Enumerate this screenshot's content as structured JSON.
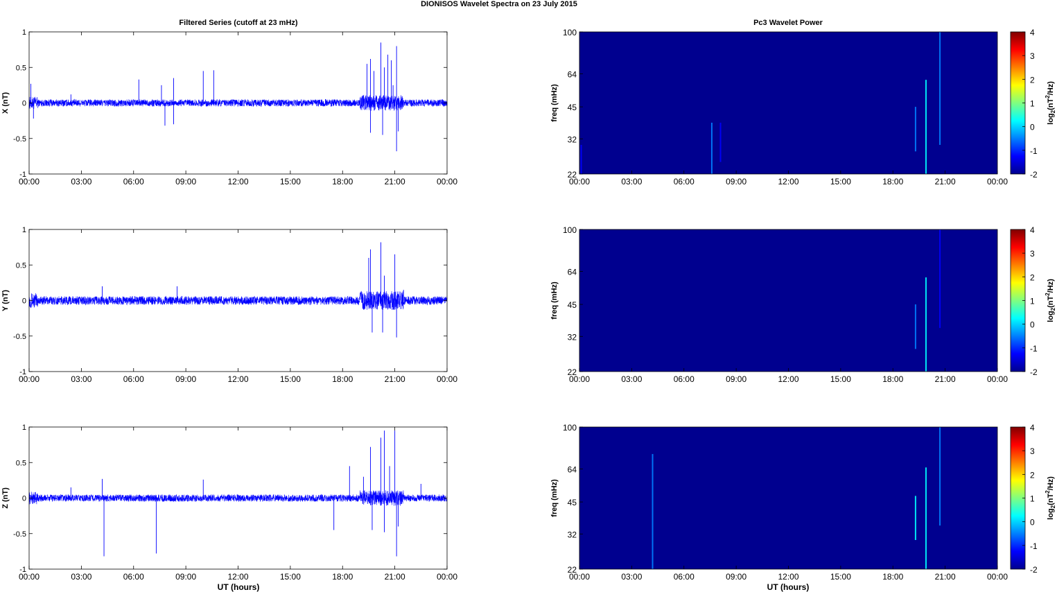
{
  "figure": {
    "suptitle": "DIONISOS Wavelet Spectra on 23 July      2015",
    "left_title": "Filtered Series (cutoff at 23 mHz)",
    "right_title": "Pc3 Wavelet Power",
    "xlabel": "UT (hours)"
  },
  "colors": {
    "series_line": "#0000ff",
    "spectrogram_background": "#00008f",
    "colormap": [
      "#00008f",
      "#0000ff",
      "#0080ff",
      "#00ffff",
      "#80ff80",
      "#ffff00",
      "#ff8000",
      "#ff0000",
      "#800000"
    ]
  },
  "chart_data": [
    {
      "type": "line",
      "panel": "time-series",
      "ylabel": "X (nT)",
      "ylim": [
        -1,
        1
      ],
      "xlim_hours": [
        0,
        24
      ],
      "x_ticks": [
        "00:00",
        "03:00",
        "06:00",
        "09:00",
        "12:00",
        "15:00",
        "18:00",
        "21:00",
        "00:00"
      ],
      "y_ticks": [
        "-1",
        "-0.5",
        "0",
        "0.5",
        "1"
      ],
      "series": [
        {
          "noise_amplitude": 0.05,
          "spikes": [
            [
              0.1,
              0.27
            ],
            [
              0.25,
              -0.22
            ],
            [
              2.4,
              0.12
            ],
            [
              6.3,
              0.33
            ],
            [
              7.6,
              0.25
            ],
            [
              7.8,
              -0.32
            ],
            [
              8.3,
              0.35
            ],
            [
              8.3,
              -0.3
            ],
            [
              10,
              0.45
            ],
            [
              10.6,
              0.46
            ],
            [
              19.4,
              0.55
            ],
            [
              19.6,
              0.62
            ],
            [
              19.6,
              -0.42
            ],
            [
              19.8,
              0.45
            ],
            [
              20.2,
              0.85
            ],
            [
              20.4,
              0.5
            ],
            [
              20.6,
              0.68
            ],
            [
              20.8,
              0.6
            ],
            [
              20.9,
              0.25
            ],
            [
              21.1,
              0.8
            ],
            [
              21.1,
              -0.68
            ],
            [
              20.3,
              -0.45
            ],
            [
              21.2,
              -0.4
            ]
          ]
        }
      ]
    },
    {
      "type": "line",
      "panel": "time-series",
      "ylabel": "Y (nT)",
      "ylim": [
        -1,
        1
      ],
      "xlim_hours": [
        0,
        24
      ],
      "x_ticks": [
        "00:00",
        "03:00",
        "06:00",
        "09:00",
        "12:00",
        "15:00",
        "18:00",
        "21:00",
        "00:00"
      ],
      "y_ticks": [
        "-1",
        "-0.5",
        "0",
        "0.5",
        "1"
      ],
      "series": [
        {
          "noise_amplitude": 0.06,
          "spikes": [
            [
              4.2,
              0.2
            ],
            [
              8.5,
              0.2
            ],
            [
              19.5,
              0.6
            ],
            [
              19.6,
              0.72
            ],
            [
              19.7,
              -0.45
            ],
            [
              20.2,
              0.82
            ],
            [
              20.4,
              0.35
            ],
            [
              20.3,
              -0.45
            ],
            [
              21.0,
              0.65
            ],
            [
              21.1,
              -0.52
            ],
            [
              21.5,
              0.15
            ]
          ]
        }
      ]
    },
    {
      "type": "line",
      "panel": "time-series",
      "ylabel": "Z (nT)",
      "ylim": [
        -1,
        1
      ],
      "xlim_hours": [
        0,
        24
      ],
      "x_ticks": [
        "00:00",
        "03:00",
        "06:00",
        "09:00",
        "12:00",
        "15:00",
        "18:00",
        "21:00",
        "00:00"
      ],
      "y_ticks": [
        "-1",
        "-0.5",
        "0",
        "0.5",
        "1"
      ],
      "series": [
        {
          "noise_amplitude": 0.05,
          "spikes": [
            [
              2.4,
              0.15
            ],
            [
              4.2,
              0.27
            ],
            [
              4.3,
              -0.82
            ],
            [
              7.3,
              -0.78
            ],
            [
              10,
              0.26
            ],
            [
              17.5,
              -0.45
            ],
            [
              18.4,
              0.45
            ],
            [
              19.2,
              0.3
            ],
            [
              19.6,
              0.72
            ],
            [
              19.7,
              -0.45
            ],
            [
              20.2,
              0.85
            ],
            [
              20.4,
              0.95
            ],
            [
              20.4,
              -0.48
            ],
            [
              20.7,
              0.45
            ],
            [
              21.0,
              0.95
            ],
            [
              21.1,
              -0.82
            ],
            [
              21.2,
              -0.4
            ],
            [
              22.5,
              0.2
            ]
          ]
        }
      ]
    },
    {
      "type": "heatmap",
      "panel": "spectrogram",
      "ylabel": "freq (mHz)",
      "y_ticks": [
        "22",
        "32",
        "45",
        "64",
        "100"
      ],
      "y_tick_values": [
        22,
        32,
        45,
        64,
        100
      ],
      "y_scale": "log",
      "xlim_hours": [
        0,
        24
      ],
      "x_ticks": [
        "00:00",
        "03:00",
        "06:00",
        "09:00",
        "12:00",
        "15:00",
        "18:00",
        "21:00",
        "00:00"
      ],
      "colorbar_label_parts": [
        "log",
        "2",
        "(nT",
        "2",
        "/Hz)"
      ],
      "colorbar_ticks": [
        "-2",
        "-1",
        "0",
        "1",
        "2",
        "3",
        "4"
      ],
      "clim": [
        -2,
        4
      ],
      "streaks": [
        [
          0.1,
          22,
          30,
          -1.2
        ],
        [
          7.6,
          22,
          38,
          -0.8
        ],
        [
          8.1,
          25,
          38,
          -1.5
        ],
        [
          19.3,
          28,
          45,
          -0.2
        ],
        [
          19.9,
          22,
          60,
          0.2
        ],
        [
          20.7,
          30,
          100,
          -0.8
        ]
      ]
    },
    {
      "type": "heatmap",
      "panel": "spectrogram",
      "ylabel": "freq (mHz)",
      "y_ticks": [
        "22",
        "32",
        "45",
        "64",
        "100"
      ],
      "y_tick_values": [
        22,
        32,
        45,
        64,
        100
      ],
      "y_scale": "log",
      "xlim_hours": [
        0,
        24
      ],
      "x_ticks": [
        "00:00",
        "03:00",
        "06:00",
        "09:00",
        "12:00",
        "15:00",
        "18:00",
        "21:00",
        "00:00"
      ],
      "colorbar_label_parts": [
        "log",
        "2",
        "(nT",
        "2",
        "/Hz)"
      ],
      "colorbar_ticks": [
        "-2",
        "-1",
        "0",
        "1",
        "2",
        "3",
        "4"
      ],
      "clim": [
        -2,
        4
      ],
      "streaks": [
        [
          19.3,
          28,
          45,
          -0.3
        ],
        [
          19.9,
          22,
          60,
          0.1
        ],
        [
          20.7,
          35,
          100,
          -1.0
        ]
      ]
    },
    {
      "type": "heatmap",
      "panel": "spectrogram",
      "ylabel": "freq (mHz)",
      "y_ticks": [
        "22",
        "32",
        "45",
        "64",
        "100"
      ],
      "y_tick_values": [
        22,
        32,
        45,
        64,
        100
      ],
      "y_scale": "log",
      "xlim_hours": [
        0,
        24
      ],
      "x_ticks": [
        "00:00",
        "03:00",
        "06:00",
        "09:00",
        "12:00",
        "15:00",
        "18:00",
        "21:00",
        "00:00"
      ],
      "colorbar_label_parts": [
        "log",
        "2",
        "(nT",
        "2",
        "/Hz)"
      ],
      "colorbar_ticks": [
        "-2",
        "-1",
        "0",
        "1",
        "2",
        "3",
        "4"
      ],
      "clim": [
        -2,
        4
      ],
      "streaks": [
        [
          4.2,
          22,
          75,
          -0.6
        ],
        [
          19.3,
          30,
          48,
          0.0
        ],
        [
          19.9,
          22,
          65,
          0.4
        ],
        [
          20.7,
          35,
          100,
          -0.5
        ]
      ]
    }
  ]
}
